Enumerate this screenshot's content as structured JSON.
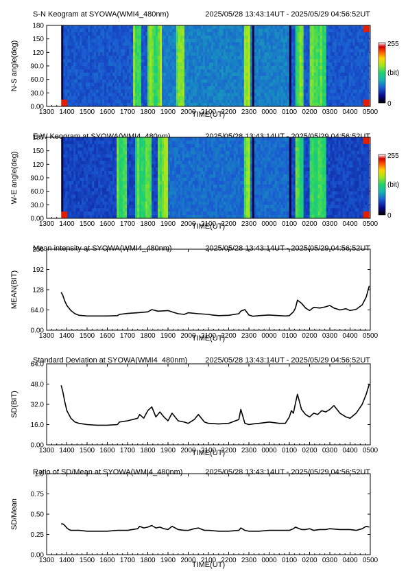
{
  "header": {
    "period": "2025/05/28 13:43:14UT - 2025/05/29 04:56:52UT"
  },
  "time_ticks": [
    "1300",
    "1400",
    "1500",
    "1600",
    "1700",
    "1800",
    "1900",
    "2000",
    "2100",
    "2200",
    "2300",
    "0000",
    "0100",
    "0200",
    "0300",
    "0400",
    "0500"
  ],
  "colorbar": {
    "max_label": "255",
    "unit_label": "(bit)",
    "min_label": "0"
  },
  "chart_data": [
    {
      "type": "heatmap",
      "title": "S-N Keogram at SYOWA(WMI4_480nm)",
      "xlabel": "TIME(UT)",
      "ylabel": "N-S angle(deg)",
      "x_range_hours": [
        0,
        16
      ],
      "ylim": [
        0,
        180
      ],
      "y_ticks": [
        "0.00",
        "30.0",
        "60.0",
        "90.0",
        "120",
        "150",
        "180"
      ],
      "data_start_hour": 0.72,
      "data_end_hour": 15.95,
      "colorscale_range": [
        0,
        255
      ],
      "colorscale": [
        "#000000",
        "#0a0a8c",
        "#1a5ad2",
        "#18b4b4",
        "#1ed26e",
        "#a0e61e",
        "#ffd200",
        "#ff5a00",
        "#d20000",
        "#ffffff"
      ],
      "background_level": 62,
      "bright_vertical_bands_hours": [
        [
          4.3,
          4.7
        ],
        [
          5.0,
          5.7
        ],
        [
          6.4,
          6.8
        ],
        [
          9.8,
          10.1
        ],
        [
          12.3,
          12.7
        ],
        [
          13.0,
          13.8
        ]
      ],
      "dark_gap_hours": [
        [
          0.72,
          0.82
        ],
        [
          10.15,
          10.25
        ],
        [
          12.0,
          12.1
        ]
      ]
    },
    {
      "type": "heatmap",
      "title": "E-W Keogram at SYOWA(WMI4_480nm)",
      "xlabel": "TIME(UT)",
      "ylabel": "W-E angle(deg)",
      "x_range_hours": [
        0,
        16
      ],
      "ylim": [
        0,
        180
      ],
      "y_ticks": [
        "0.00",
        "30.0",
        "60.0",
        "90.0",
        "120",
        "150",
        "180"
      ],
      "data_start_hour": 0.72,
      "data_end_hour": 15.95,
      "colorscale_range": [
        0,
        255
      ],
      "background_level": 55,
      "bright_vertical_bands_hours": [
        [
          3.5,
          4.0
        ],
        [
          4.4,
          5.2
        ],
        [
          5.5,
          6.0
        ],
        [
          9.8,
          10.1
        ],
        [
          12.3,
          12.7
        ],
        [
          13.0,
          13.8
        ]
      ],
      "dark_gap_hours": [
        [
          0.72,
          0.82
        ],
        [
          10.15,
          10.25
        ],
        [
          12.0,
          12.1
        ]
      ]
    },
    {
      "type": "line",
      "title": "Mean intensity at SYOWA(WMI4_480nm)",
      "xlabel": "TIME(UT)",
      "ylabel": "MEAN(BIT)",
      "ylim": [
        0,
        256
      ],
      "y_ticks": [
        "0.00",
        "64.0",
        "128",
        "192",
        "256"
      ],
      "x_hours": [
        0.72,
        0.8,
        0.9,
        1.0,
        1.2,
        1.4,
        1.6,
        2.0,
        2.5,
        3.0,
        3.5,
        3.6,
        4.0,
        4.5,
        5.0,
        5.2,
        5.5,
        6.0,
        6.3,
        6.5,
        6.8,
        7.0,
        7.5,
        8.0,
        8.2,
        8.5,
        9.0,
        9.5,
        9.6,
        9.8,
        10.0,
        10.2,
        10.5,
        11.0,
        11.5,
        11.8,
        12.0,
        12.1,
        12.2,
        12.3,
        12.4,
        12.6,
        12.8,
        13.0,
        13.2,
        13.5,
        13.8,
        14.0,
        14.2,
        14.5,
        14.8,
        15.0,
        15.3,
        15.6,
        15.8,
        15.95
      ],
      "series": [
        {
          "values": [
            120,
            110,
            92,
            78,
            62,
            52,
            47,
            45,
            45,
            45,
            46,
            50,
            53,
            55,
            58,
            65,
            60,
            62,
            56,
            52,
            50,
            55,
            52,
            50,
            48,
            46,
            47,
            52,
            60,
            65,
            48,
            44,
            46,
            48,
            46,
            45,
            46,
            52,
            58,
            70,
            95,
            85,
            70,
            62,
            72,
            70,
            74,
            78,
            70,
            64,
            68,
            62,
            66,
            80,
            105,
            140
          ]
        }
      ]
    },
    {
      "type": "line",
      "title": "Standard Deviation at SYOWA(WMI4_480nm)",
      "xlabel": "TIME(UT)",
      "ylabel": "SD(BIT)",
      "ylim": [
        0,
        64
      ],
      "y_ticks": [
        "0.00",
        "16.0",
        "32.0",
        "48.0",
        "64.0"
      ],
      "x_hours": [
        0.72,
        0.8,
        0.9,
        1.0,
        1.2,
        1.4,
        1.6,
        1.8,
        2.0,
        2.5,
        3.0,
        3.5,
        3.6,
        4.0,
        4.5,
        4.6,
        4.8,
        5.0,
        5.2,
        5.4,
        5.6,
        5.8,
        6.0,
        6.2,
        6.5,
        6.8,
        7.0,
        7.3,
        7.5,
        7.8,
        8.0,
        8.5,
        9.0,
        9.5,
        9.6,
        9.8,
        10.0,
        10.2,
        10.5,
        11.0,
        11.5,
        11.8,
        12.0,
        12.1,
        12.2,
        12.3,
        12.4,
        12.6,
        12.8,
        13.0,
        13.2,
        13.4,
        13.6,
        13.8,
        14.0,
        14.2,
        14.5,
        14.8,
        15.0,
        15.3,
        15.6,
        15.8,
        15.95
      ],
      "series": [
        {
          "values": [
            47,
            42,
            34,
            27,
            21,
            18,
            17,
            16.5,
            16,
            15.5,
            15.5,
            16,
            18,
            19,
            21,
            24,
            21,
            27,
            30,
            22,
            26,
            22,
            19,
            25,
            19,
            18,
            17,
            20,
            24,
            18,
            17,
            16.5,
            17,
            20,
            28,
            17,
            16,
            16.5,
            17,
            18,
            17,
            17,
            22,
            27,
            25,
            33,
            40,
            28,
            24,
            22,
            25,
            24,
            27,
            26,
            28,
            31,
            25,
            22,
            21,
            25,
            32,
            40,
            48
          ]
        }
      ]
    },
    {
      "type": "line",
      "title": "Ratio of SD/Mean at SYOWA(WMI4_480nm)",
      "xlabel": "TIME(UT)",
      "ylabel": "SD/Mean",
      "ylim": [
        0,
        1
      ],
      "y_ticks": [
        "0.00",
        "0.25",
        "0.50",
        "0.75",
        "1.0"
      ],
      "x_hours": [
        0.72,
        0.8,
        0.9,
        1.0,
        1.1,
        1.2,
        1.4,
        1.6,
        2.0,
        2.5,
        3.0,
        3.5,
        4.0,
        4.5,
        4.6,
        4.8,
        5.0,
        5.2,
        5.4,
        5.6,
        5.8,
        6.0,
        6.2,
        6.5,
        6.8,
        7.0,
        7.3,
        7.5,
        7.8,
        8.0,
        8.5,
        9.0,
        9.5,
        9.6,
        9.8,
        10.0,
        10.5,
        11.0,
        11.5,
        12.0,
        12.2,
        12.3,
        12.4,
        12.6,
        12.8,
        13.0,
        13.2,
        13.5,
        13.8,
        14.0,
        14.5,
        15.0,
        15.3,
        15.6,
        15.8,
        15.95
      ],
      "series": [
        {
          "values": [
            0.38,
            0.38,
            0.36,
            0.33,
            0.31,
            0.3,
            0.3,
            0.3,
            0.29,
            0.29,
            0.29,
            0.3,
            0.3,
            0.32,
            0.35,
            0.33,
            0.34,
            0.36,
            0.33,
            0.34,
            0.32,
            0.31,
            0.35,
            0.31,
            0.3,
            0.3,
            0.32,
            0.33,
            0.3,
            0.3,
            0.29,
            0.29,
            0.3,
            0.33,
            0.3,
            0.29,
            0.29,
            0.3,
            0.3,
            0.3,
            0.32,
            0.34,
            0.33,
            0.31,
            0.31,
            0.32,
            0.3,
            0.31,
            0.31,
            0.32,
            0.31,
            0.31,
            0.3,
            0.32,
            0.35,
            0.34
          ]
        }
      ]
    }
  ]
}
